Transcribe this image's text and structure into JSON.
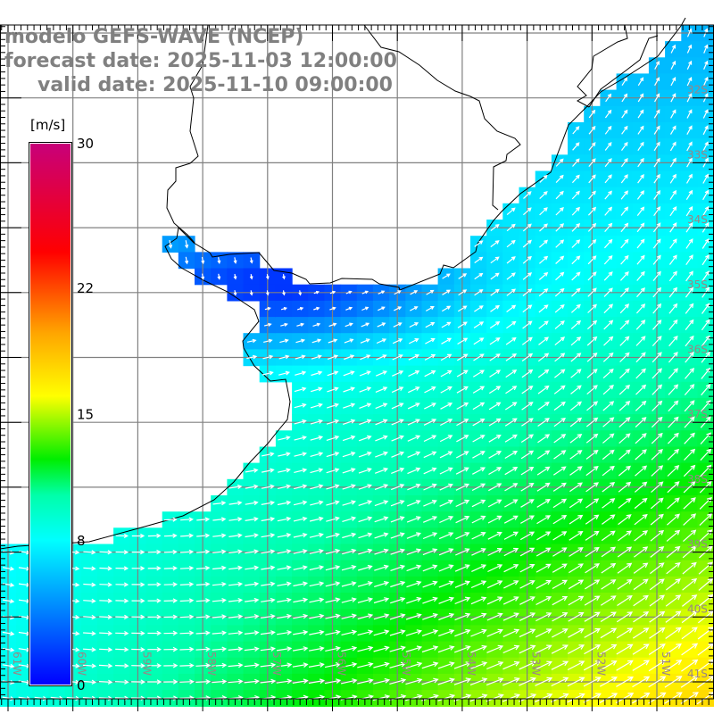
{
  "title": {
    "model": "modelo GEFS-WAVE (NCEP)",
    "forecast": "forecast date: 2025-11-03 12:00:00",
    "valid": "valid date: 2025-11-10 09:00:00"
  },
  "colorbar": {
    "unit": "[m/s]",
    "min": 0,
    "max": 30,
    "ticks": [
      {
        "value": 30,
        "label": "30"
      },
      {
        "value": 22,
        "label": "22"
      },
      {
        "value": 15,
        "label": "15"
      },
      {
        "value": 8,
        "label": "8"
      },
      {
        "value": 0,
        "label": "0"
      }
    ],
    "stops": [
      {
        "value": 0,
        "color": "#0000ff"
      },
      {
        "value": 4,
        "color": "#0080ff"
      },
      {
        "value": 8,
        "color": "#00ffff"
      },
      {
        "value": 10.5,
        "color": "#00ffaa"
      },
      {
        "value": 12.5,
        "color": "#00ee00"
      },
      {
        "value": 16,
        "color": "#ffff00"
      },
      {
        "value": 19.5,
        "color": "#ffa500"
      },
      {
        "value": 24,
        "color": "#ff0000"
      },
      {
        "value": 30,
        "color": "#c8007a"
      }
    ]
  },
  "map": {
    "lat_labels": [
      "32S",
      "33S",
      "34S",
      "35S",
      "36S",
      "37S",
      "38S",
      "39S",
      "40S",
      "41S"
    ],
    "lon_labels": [
      "61W",
      "60W",
      "59W",
      "58W",
      "57W",
      "56W",
      "55W",
      "54W",
      "53W",
      "52W",
      "51W"
    ],
    "land_color": "#ffffff",
    "coast_color": "#000000",
    "grid_color": "#808080",
    "arrow_color": "#ffffff"
  }
}
